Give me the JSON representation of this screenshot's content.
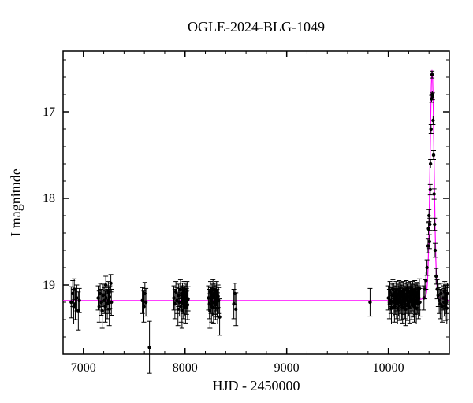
{
  "chart": {
    "type": "scatter",
    "title": "OGLE-2024-BLG-1049",
    "title_fontsize": 18,
    "xlabel": "HJD - 2450000",
    "ylabel": "I magnitude",
    "label_fontsize": 18,
    "tick_fontsize": 16,
    "background_color": "#ffffff",
    "frame_color": "#000000",
    "xlim": [
      6800,
      10600
    ],
    "ylim": [
      19.8,
      16.3
    ],
    "xticks": [
      7000,
      8000,
      9000,
      10000
    ],
    "yticks": [
      17,
      18,
      19
    ],
    "x_minor_step": 200,
    "y_minor_step": 0.2,
    "tick_len_major": 8,
    "tick_len_minor": 4,
    "marker_radius": 2.2,
    "errbar_cap": 3,
    "model_color": "#ff00ff",
    "point_color": "#000000",
    "errbar_color": "#000000",
    "baseline_mag": 19.18,
    "peak_x": 10430,
    "peak_mag": 16.57,
    "peak_width": 60,
    "peak_shoulder": 18.7,
    "data": [
      {
        "x": 6880,
        "y": 19.2,
        "e": 0.18
      },
      {
        "x": 6895,
        "y": 19.1,
        "e": 0.15
      },
      {
        "x": 6905,
        "y": 19.25,
        "e": 0.2
      },
      {
        "x": 6910,
        "y": 19.05,
        "e": 0.12
      },
      {
        "x": 6920,
        "y": 19.22,
        "e": 0.18
      },
      {
        "x": 6935,
        "y": 19.15,
        "e": 0.15
      },
      {
        "x": 6950,
        "y": 19.3,
        "e": 0.22
      },
      {
        "x": 6960,
        "y": 19.18,
        "e": 0.14
      },
      {
        "x": 7145,
        "y": 19.15,
        "e": 0.14
      },
      {
        "x": 7155,
        "y": 19.25,
        "e": 0.18
      },
      {
        "x": 7165,
        "y": 19.1,
        "e": 0.12
      },
      {
        "x": 7175,
        "y": 19.2,
        "e": 0.15
      },
      {
        "x": 7185,
        "y": 19.3,
        "e": 0.2
      },
      {
        "x": 7195,
        "y": 19.12,
        "e": 0.13
      },
      {
        "x": 7205,
        "y": 19.18,
        "e": 0.15
      },
      {
        "x": 7215,
        "y": 19.25,
        "e": 0.18
      },
      {
        "x": 7220,
        "y": 19.0,
        "e": 0.1
      },
      {
        "x": 7225,
        "y": 19.15,
        "e": 0.14
      },
      {
        "x": 7235,
        "y": 19.22,
        "e": 0.17
      },
      {
        "x": 7245,
        "y": 19.08,
        "e": 0.12
      },
      {
        "x": 7250,
        "y": 19.18,
        "e": 0.15
      },
      {
        "x": 7255,
        "y": 19.28,
        "e": 0.19
      },
      {
        "x": 7260,
        "y": 19.14,
        "e": 0.13
      },
      {
        "x": 7270,
        "y": 18.98,
        "e": 0.1
      },
      {
        "x": 7275,
        "y": 19.2,
        "e": 0.15
      },
      {
        "x": 7580,
        "y": 19.18,
        "e": 0.15
      },
      {
        "x": 7595,
        "y": 19.25,
        "e": 0.18
      },
      {
        "x": 7605,
        "y": 19.1,
        "e": 0.13
      },
      {
        "x": 7615,
        "y": 19.2,
        "e": 0.16
      },
      {
        "x": 7650,
        "y": 19.72,
        "e": 0.3
      },
      {
        "x": 7890,
        "y": 19.15,
        "e": 0.14
      },
      {
        "x": 7900,
        "y": 19.22,
        "e": 0.17
      },
      {
        "x": 7910,
        "y": 19.08,
        "e": 0.12
      },
      {
        "x": 7920,
        "y": 19.18,
        "e": 0.15
      },
      {
        "x": 7930,
        "y": 19.28,
        "e": 0.19
      },
      {
        "x": 7935,
        "y": 19.12,
        "e": 0.13
      },
      {
        "x": 7945,
        "y": 19.2,
        "e": 0.16
      },
      {
        "x": 7955,
        "y": 19.05,
        "e": 0.11
      },
      {
        "x": 7960,
        "y": 19.25,
        "e": 0.18
      },
      {
        "x": 7965,
        "y": 19.15,
        "e": 0.14
      },
      {
        "x": 7970,
        "y": 19.3,
        "e": 0.2
      },
      {
        "x": 7975,
        "y": 19.1,
        "e": 0.12
      },
      {
        "x": 7980,
        "y": 19.18,
        "e": 0.15
      },
      {
        "x": 7985,
        "y": 19.22,
        "e": 0.17
      },
      {
        "x": 7990,
        "y": 19.08,
        "e": 0.12
      },
      {
        "x": 7995,
        "y": 19.2,
        "e": 0.16
      },
      {
        "x": 8000,
        "y": 19.14,
        "e": 0.13
      },
      {
        "x": 8005,
        "y": 19.26,
        "e": 0.18
      },
      {
        "x": 8010,
        "y": 19.12,
        "e": 0.13
      },
      {
        "x": 8015,
        "y": 19.19,
        "e": 0.15
      },
      {
        "x": 8020,
        "y": 19.07,
        "e": 0.11
      },
      {
        "x": 8025,
        "y": 19.23,
        "e": 0.17
      },
      {
        "x": 8030,
        "y": 19.16,
        "e": 0.14
      },
      {
        "x": 8230,
        "y": 19.15,
        "e": 0.14
      },
      {
        "x": 8240,
        "y": 19.22,
        "e": 0.17
      },
      {
        "x": 8245,
        "y": 19.3,
        "e": 0.2
      },
      {
        "x": 8250,
        "y": 19.08,
        "e": 0.12
      },
      {
        "x": 8255,
        "y": 19.18,
        "e": 0.15
      },
      {
        "x": 8260,
        "y": 19.25,
        "e": 0.18
      },
      {
        "x": 8265,
        "y": 19.12,
        "e": 0.13
      },
      {
        "x": 8270,
        "y": 19.2,
        "e": 0.16
      },
      {
        "x": 8275,
        "y": 19.05,
        "e": 0.11
      },
      {
        "x": 8280,
        "y": 19.26,
        "e": 0.18
      },
      {
        "x": 8285,
        "y": 19.14,
        "e": 0.13
      },
      {
        "x": 8290,
        "y": 19.19,
        "e": 0.15
      },
      {
        "x": 8295,
        "y": 19.1,
        "e": 0.12
      },
      {
        "x": 8300,
        "y": 19.23,
        "e": 0.17
      },
      {
        "x": 8305,
        "y": 19.16,
        "e": 0.14
      },
      {
        "x": 8310,
        "y": 19.08,
        "e": 0.12
      },
      {
        "x": 8315,
        "y": 19.21,
        "e": 0.16
      },
      {
        "x": 8320,
        "y": 19.27,
        "e": 0.18
      },
      {
        "x": 8325,
        "y": 19.13,
        "e": 0.13
      },
      {
        "x": 8330,
        "y": 19.18,
        "e": 0.15
      },
      {
        "x": 8340,
        "y": 19.37,
        "e": 0.21
      },
      {
        "x": 8480,
        "y": 19.22,
        "e": 0.17
      },
      {
        "x": 8490,
        "y": 19.1,
        "e": 0.12
      },
      {
        "x": 8500,
        "y": 19.28,
        "e": 0.19
      },
      {
        "x": 9820,
        "y": 19.2,
        "e": 0.16
      },
      {
        "x": 10000,
        "y": 19.15,
        "e": 0.14
      },
      {
        "x": 10010,
        "y": 19.22,
        "e": 0.17
      },
      {
        "x": 10015,
        "y": 19.08,
        "e": 0.12
      },
      {
        "x": 10025,
        "y": 19.18,
        "e": 0.15
      },
      {
        "x": 10030,
        "y": 19.27,
        "e": 0.18
      },
      {
        "x": 10035,
        "y": 19.12,
        "e": 0.13
      },
      {
        "x": 10045,
        "y": 19.05,
        "e": 0.11
      },
      {
        "x": 10050,
        "y": 19.2,
        "e": 0.16
      },
      {
        "x": 10055,
        "y": 19.1,
        "e": 0.12
      },
      {
        "x": 10060,
        "y": 19.25,
        "e": 0.18
      },
      {
        "x": 10065,
        "y": 19.14,
        "e": 0.13
      },
      {
        "x": 10070,
        "y": 19.19,
        "e": 0.15
      },
      {
        "x": 10075,
        "y": 19.08,
        "e": 0.12
      },
      {
        "x": 10080,
        "y": 19.22,
        "e": 0.17
      },
      {
        "x": 10085,
        "y": 19.16,
        "e": 0.14
      },
      {
        "x": 10090,
        "y": 19.27,
        "e": 0.18
      },
      {
        "x": 10095,
        "y": 19.11,
        "e": 0.12
      },
      {
        "x": 10100,
        "y": 19.2,
        "e": 0.16
      },
      {
        "x": 10105,
        "y": 19.06,
        "e": 0.11
      },
      {
        "x": 10110,
        "y": 19.24,
        "e": 0.17
      },
      {
        "x": 10115,
        "y": 19.15,
        "e": 0.14
      },
      {
        "x": 10120,
        "y": 19.18,
        "e": 0.15
      },
      {
        "x": 10125,
        "y": 19.09,
        "e": 0.12
      },
      {
        "x": 10130,
        "y": 19.23,
        "e": 0.17
      },
      {
        "x": 10135,
        "y": 19.13,
        "e": 0.13
      },
      {
        "x": 10140,
        "y": 19.26,
        "e": 0.18
      },
      {
        "x": 10145,
        "y": 19.08,
        "e": 0.12
      },
      {
        "x": 10150,
        "y": 19.19,
        "e": 0.15
      },
      {
        "x": 10155,
        "y": 19.1,
        "e": 0.12
      },
      {
        "x": 10160,
        "y": 19.22,
        "e": 0.17
      },
      {
        "x": 10165,
        "y": 19.15,
        "e": 0.14
      },
      {
        "x": 10170,
        "y": 19.28,
        "e": 0.19
      },
      {
        "x": 10175,
        "y": 19.06,
        "e": 0.11
      },
      {
        "x": 10180,
        "y": 19.18,
        "e": 0.15
      },
      {
        "x": 10185,
        "y": 19.12,
        "e": 0.13
      },
      {
        "x": 10190,
        "y": 19.24,
        "e": 0.17
      },
      {
        "x": 10195,
        "y": 19.09,
        "e": 0.12
      },
      {
        "x": 10200,
        "y": 19.2,
        "e": 0.16
      },
      {
        "x": 10205,
        "y": 19.14,
        "e": 0.13
      },
      {
        "x": 10210,
        "y": 19.26,
        "e": 0.18
      },
      {
        "x": 10215,
        "y": 19.07,
        "e": 0.11
      },
      {
        "x": 10220,
        "y": 19.18,
        "e": 0.15
      },
      {
        "x": 10225,
        "y": 19.11,
        "e": 0.12
      },
      {
        "x": 10230,
        "y": 19.23,
        "e": 0.17
      },
      {
        "x": 10235,
        "y": 19.16,
        "e": 0.14
      },
      {
        "x": 10240,
        "y": 19.08,
        "e": 0.12
      },
      {
        "x": 10245,
        "y": 19.21,
        "e": 0.16
      },
      {
        "x": 10250,
        "y": 19.12,
        "e": 0.13
      },
      {
        "x": 10255,
        "y": 19.25,
        "e": 0.18
      },
      {
        "x": 10260,
        "y": 19.06,
        "e": 0.11
      },
      {
        "x": 10265,
        "y": 19.19,
        "e": 0.15
      },
      {
        "x": 10270,
        "y": 19.13,
        "e": 0.13
      },
      {
        "x": 10275,
        "y": 19.27,
        "e": 0.18
      },
      {
        "x": 10280,
        "y": 19.09,
        "e": 0.12
      },
      {
        "x": 10285,
        "y": 19.18,
        "e": 0.15
      },
      {
        "x": 10290,
        "y": 19.1,
        "e": 0.12
      },
      {
        "x": 10295,
        "y": 19.22,
        "e": 0.17
      },
      {
        "x": 10300,
        "y": 19.15,
        "e": 0.14
      },
      {
        "x": 10305,
        "y": 19.04,
        "e": 0.11
      },
      {
        "x": 10310,
        "y": 19.2,
        "e": 0.16
      },
      {
        "x": 10350,
        "y": 19.15,
        "e": 0.14
      },
      {
        "x": 10360,
        "y": 19.05,
        "e": 0.11
      },
      {
        "x": 10370,
        "y": 18.95,
        "e": 0.1
      },
      {
        "x": 10380,
        "y": 18.8,
        "e": 0.09
      },
      {
        "x": 10390,
        "y": 18.55,
        "e": 0.08
      },
      {
        "x": 10395,
        "y": 18.35,
        "e": 0.07
      },
      {
        "x": 10400,
        "y": 18.2,
        "e": 0.07
      },
      {
        "x": 10405,
        "y": 18.5,
        "e": 0.08
      },
      {
        "x": 10408,
        "y": 18.3,
        "e": 0.07
      },
      {
        "x": 10412,
        "y": 17.9,
        "e": 0.06
      },
      {
        "x": 10415,
        "y": 17.6,
        "e": 0.05
      },
      {
        "x": 10420,
        "y": 17.2,
        "e": 0.05
      },
      {
        "x": 10425,
        "y": 16.85,
        "e": 0.04
      },
      {
        "x": 10430,
        "y": 16.57,
        "e": 0.04
      },
      {
        "x": 10432,
        "y": 16.8,
        "e": 0.04
      },
      {
        "x": 10435,
        "y": 16.82,
        "e": 0.04
      },
      {
        "x": 10440,
        "y": 17.1,
        "e": 0.05
      },
      {
        "x": 10445,
        "y": 17.5,
        "e": 0.05
      },
      {
        "x": 10450,
        "y": 17.95,
        "e": 0.06
      },
      {
        "x": 10455,
        "y": 18.3,
        "e": 0.07
      },
      {
        "x": 10460,
        "y": 18.6,
        "e": 0.08
      },
      {
        "x": 10470,
        "y": 18.9,
        "e": 0.09
      },
      {
        "x": 10480,
        "y": 19.05,
        "e": 0.11
      },
      {
        "x": 10490,
        "y": 19.12,
        "e": 0.13
      },
      {
        "x": 10500,
        "y": 19.18,
        "e": 0.15
      },
      {
        "x": 10510,
        "y": 19.22,
        "e": 0.17
      },
      {
        "x": 10520,
        "y": 19.1,
        "e": 0.12
      },
      {
        "x": 10530,
        "y": 19.25,
        "e": 0.18
      },
      {
        "x": 10540,
        "y": 19.15,
        "e": 0.14
      },
      {
        "x": 10550,
        "y": 19.2,
        "e": 0.16
      },
      {
        "x": 10555,
        "y": 19.08,
        "e": 0.12
      },
      {
        "x": 10560,
        "y": 19.24,
        "e": 0.17
      },
      {
        "x": 10565,
        "y": 19.14,
        "e": 0.13
      },
      {
        "x": 10570,
        "y": 19.18,
        "e": 0.15
      },
      {
        "x": 10575,
        "y": 19.27,
        "e": 0.18
      },
      {
        "x": 10580,
        "y": 19.1,
        "e": 0.12
      }
    ]
  }
}
